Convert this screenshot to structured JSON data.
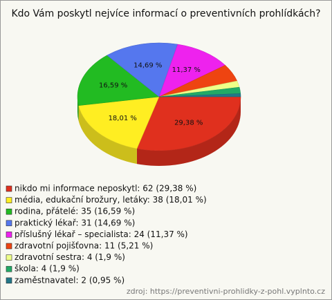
{
  "chart_data": {
    "type": "pie",
    "style": "3d",
    "title": "Kdo Vám poskytl nejvíce informací o preventivních prohlídkách?",
    "categories": [
      "nikdo mi informace neposkytl",
      "média, edukační brožury, letáky",
      "rodina, přátelé",
      "praktický lékař",
      "příslušný lékař – specialista",
      "zdravotní pojišťovna",
      "zdravotní sestra",
      "škola",
      "zaměstnavatel"
    ],
    "values": [
      29.38,
      18.01,
      16.59,
      14.69,
      11.37,
      5.21,
      1.9,
      1.9,
      0.95
    ],
    "value_labels": [
      "29,38 %",
      "18,01 %",
      "16,59 %",
      "14,69 %",
      "11,37 %",
      null,
      null,
      null,
      null
    ],
    "legend": [
      "nikdo mi informace neposkytl: 62 (29,38 %)",
      "média, edukační brožury, letáky: 38 (18,01 %)",
      "rodina, přátelé: 35 (16,59 %)",
      "praktický lékař: 31 (14,69 %)",
      "příslušný lékař – specialista: 24 (11,37 %)",
      "zdravotní pojišťovna: 11 (5,21 %)",
      "zdravotní sestra: 4 (1,9 %)",
      "škola: 4 (1,9 %)",
      "zaměstnavatel: 2 (0,95 %)"
    ],
    "colors": [
      "#e0301e",
      "#ffee22",
      "#22bb22",
      "#5577ee",
      "#ee22ee",
      "#ee4411",
      "#eeff88",
      "#22aa66",
      "#227788"
    ],
    "source": "zdroj: https://preventivni-prohlidky-z-pohl.vyplnto.cz"
  }
}
